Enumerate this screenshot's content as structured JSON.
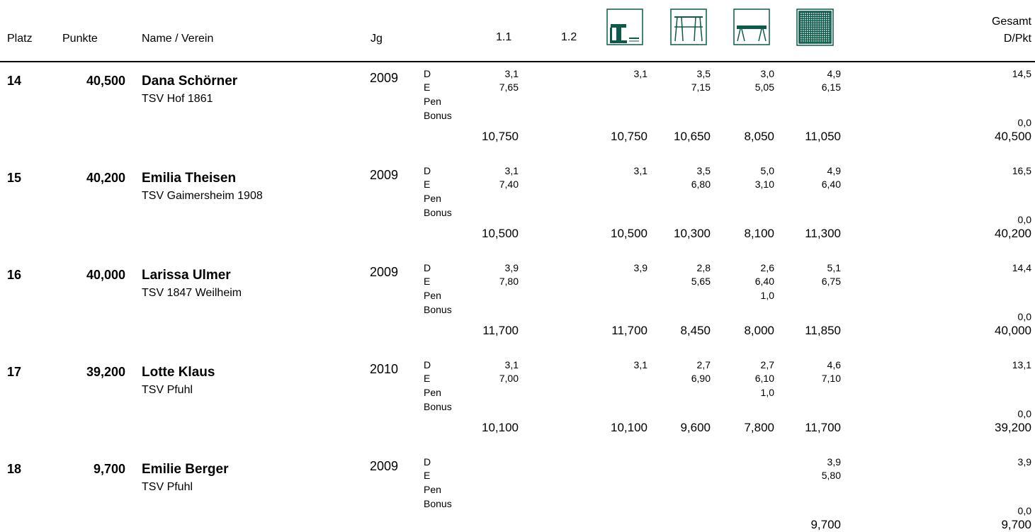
{
  "header": {
    "platz": "Platz",
    "punkte": "Punkte",
    "name_verein": "Name / Verein",
    "jg": "Jg",
    "col_11": "1.1",
    "col_12": "1.2",
    "gesamt": "Gesamt",
    "dpkt": "D/Pkt",
    "apparatus_icons": [
      "vault-icon",
      "uneven-bars-icon",
      "balance-beam-icon",
      "floor-icon"
    ]
  },
  "accent_color": "#0b5a4a",
  "labels": {
    "d": "D",
    "e": "E",
    "pen": "Pen",
    "bonus": "Bonus"
  },
  "rows": [
    {
      "rank": "14",
      "points": "40,500",
      "name": "Dana Schörner",
      "club": "TSV Hof 1861",
      "year": "2009",
      "d": [
        "3,1",
        "3,1",
        "3,5",
        "3,0",
        "4,9",
        "14,5"
      ],
      "e": [
        "7,65",
        "",
        "7,15",
        "5,05",
        "6,15"
      ],
      "pen": [
        "",
        "",
        "",
        "",
        ""
      ],
      "bonus": "0,0",
      "totals": [
        "10,750",
        "10,750",
        "10,650",
        "8,050",
        "11,050",
        "40,500"
      ]
    },
    {
      "rank": "15",
      "points": "40,200",
      "name": "Emilia Theisen",
      "club": "TSV Gaimersheim 1908",
      "year": "2009",
      "d": [
        "3,1",
        "3,1",
        "3,5",
        "5,0",
        "4,9",
        "16,5"
      ],
      "e": [
        "7,40",
        "",
        "6,80",
        "3,10",
        "6,40"
      ],
      "pen": [
        "",
        "",
        "",
        "",
        ""
      ],
      "bonus": "0,0",
      "totals": [
        "10,500",
        "10,500",
        "10,300",
        "8,100",
        "11,300",
        "40,200"
      ]
    },
    {
      "rank": "16",
      "points": "40,000",
      "name": "Larissa Ulmer",
      "club": "TSV 1847 Weilheim",
      "year": "2009",
      "d": [
        "3,9",
        "3,9",
        "2,8",
        "2,6",
        "5,1",
        "14,4"
      ],
      "e": [
        "7,80",
        "",
        "5,65",
        "6,40",
        "6,75"
      ],
      "pen": [
        "",
        "",
        "",
        "1,0",
        ""
      ],
      "bonus": "0,0",
      "totals": [
        "11,700",
        "11,700",
        "8,450",
        "8,000",
        "11,850",
        "40,000"
      ]
    },
    {
      "rank": "17",
      "points": "39,200",
      "name": "Lotte Klaus",
      "club": "TSV Pfuhl",
      "year": "2010",
      "d": [
        "3,1",
        "3,1",
        "2,7",
        "2,7",
        "4,6",
        "13,1"
      ],
      "e": [
        "7,00",
        "",
        "6,90",
        "6,10",
        "7,10"
      ],
      "pen": [
        "",
        "",
        "",
        "1,0",
        ""
      ],
      "bonus": "0,0",
      "totals": [
        "10,100",
        "10,100",
        "9,600",
        "7,800",
        "11,700",
        "39,200"
      ]
    },
    {
      "rank": "18",
      "points": "9,700",
      "name": "Emilie Berger",
      "club": "TSV Pfuhl",
      "year": "2009",
      "d": [
        "",
        "",
        "",
        "",
        "3,9",
        "3,9"
      ],
      "e": [
        "",
        "",
        "",
        "",
        "5,80"
      ],
      "pen": [
        "",
        "",
        "",
        "",
        ""
      ],
      "bonus": "0,0",
      "totals": [
        "",
        "",
        "",
        "",
        "9,700",
        "9,700"
      ]
    }
  ]
}
